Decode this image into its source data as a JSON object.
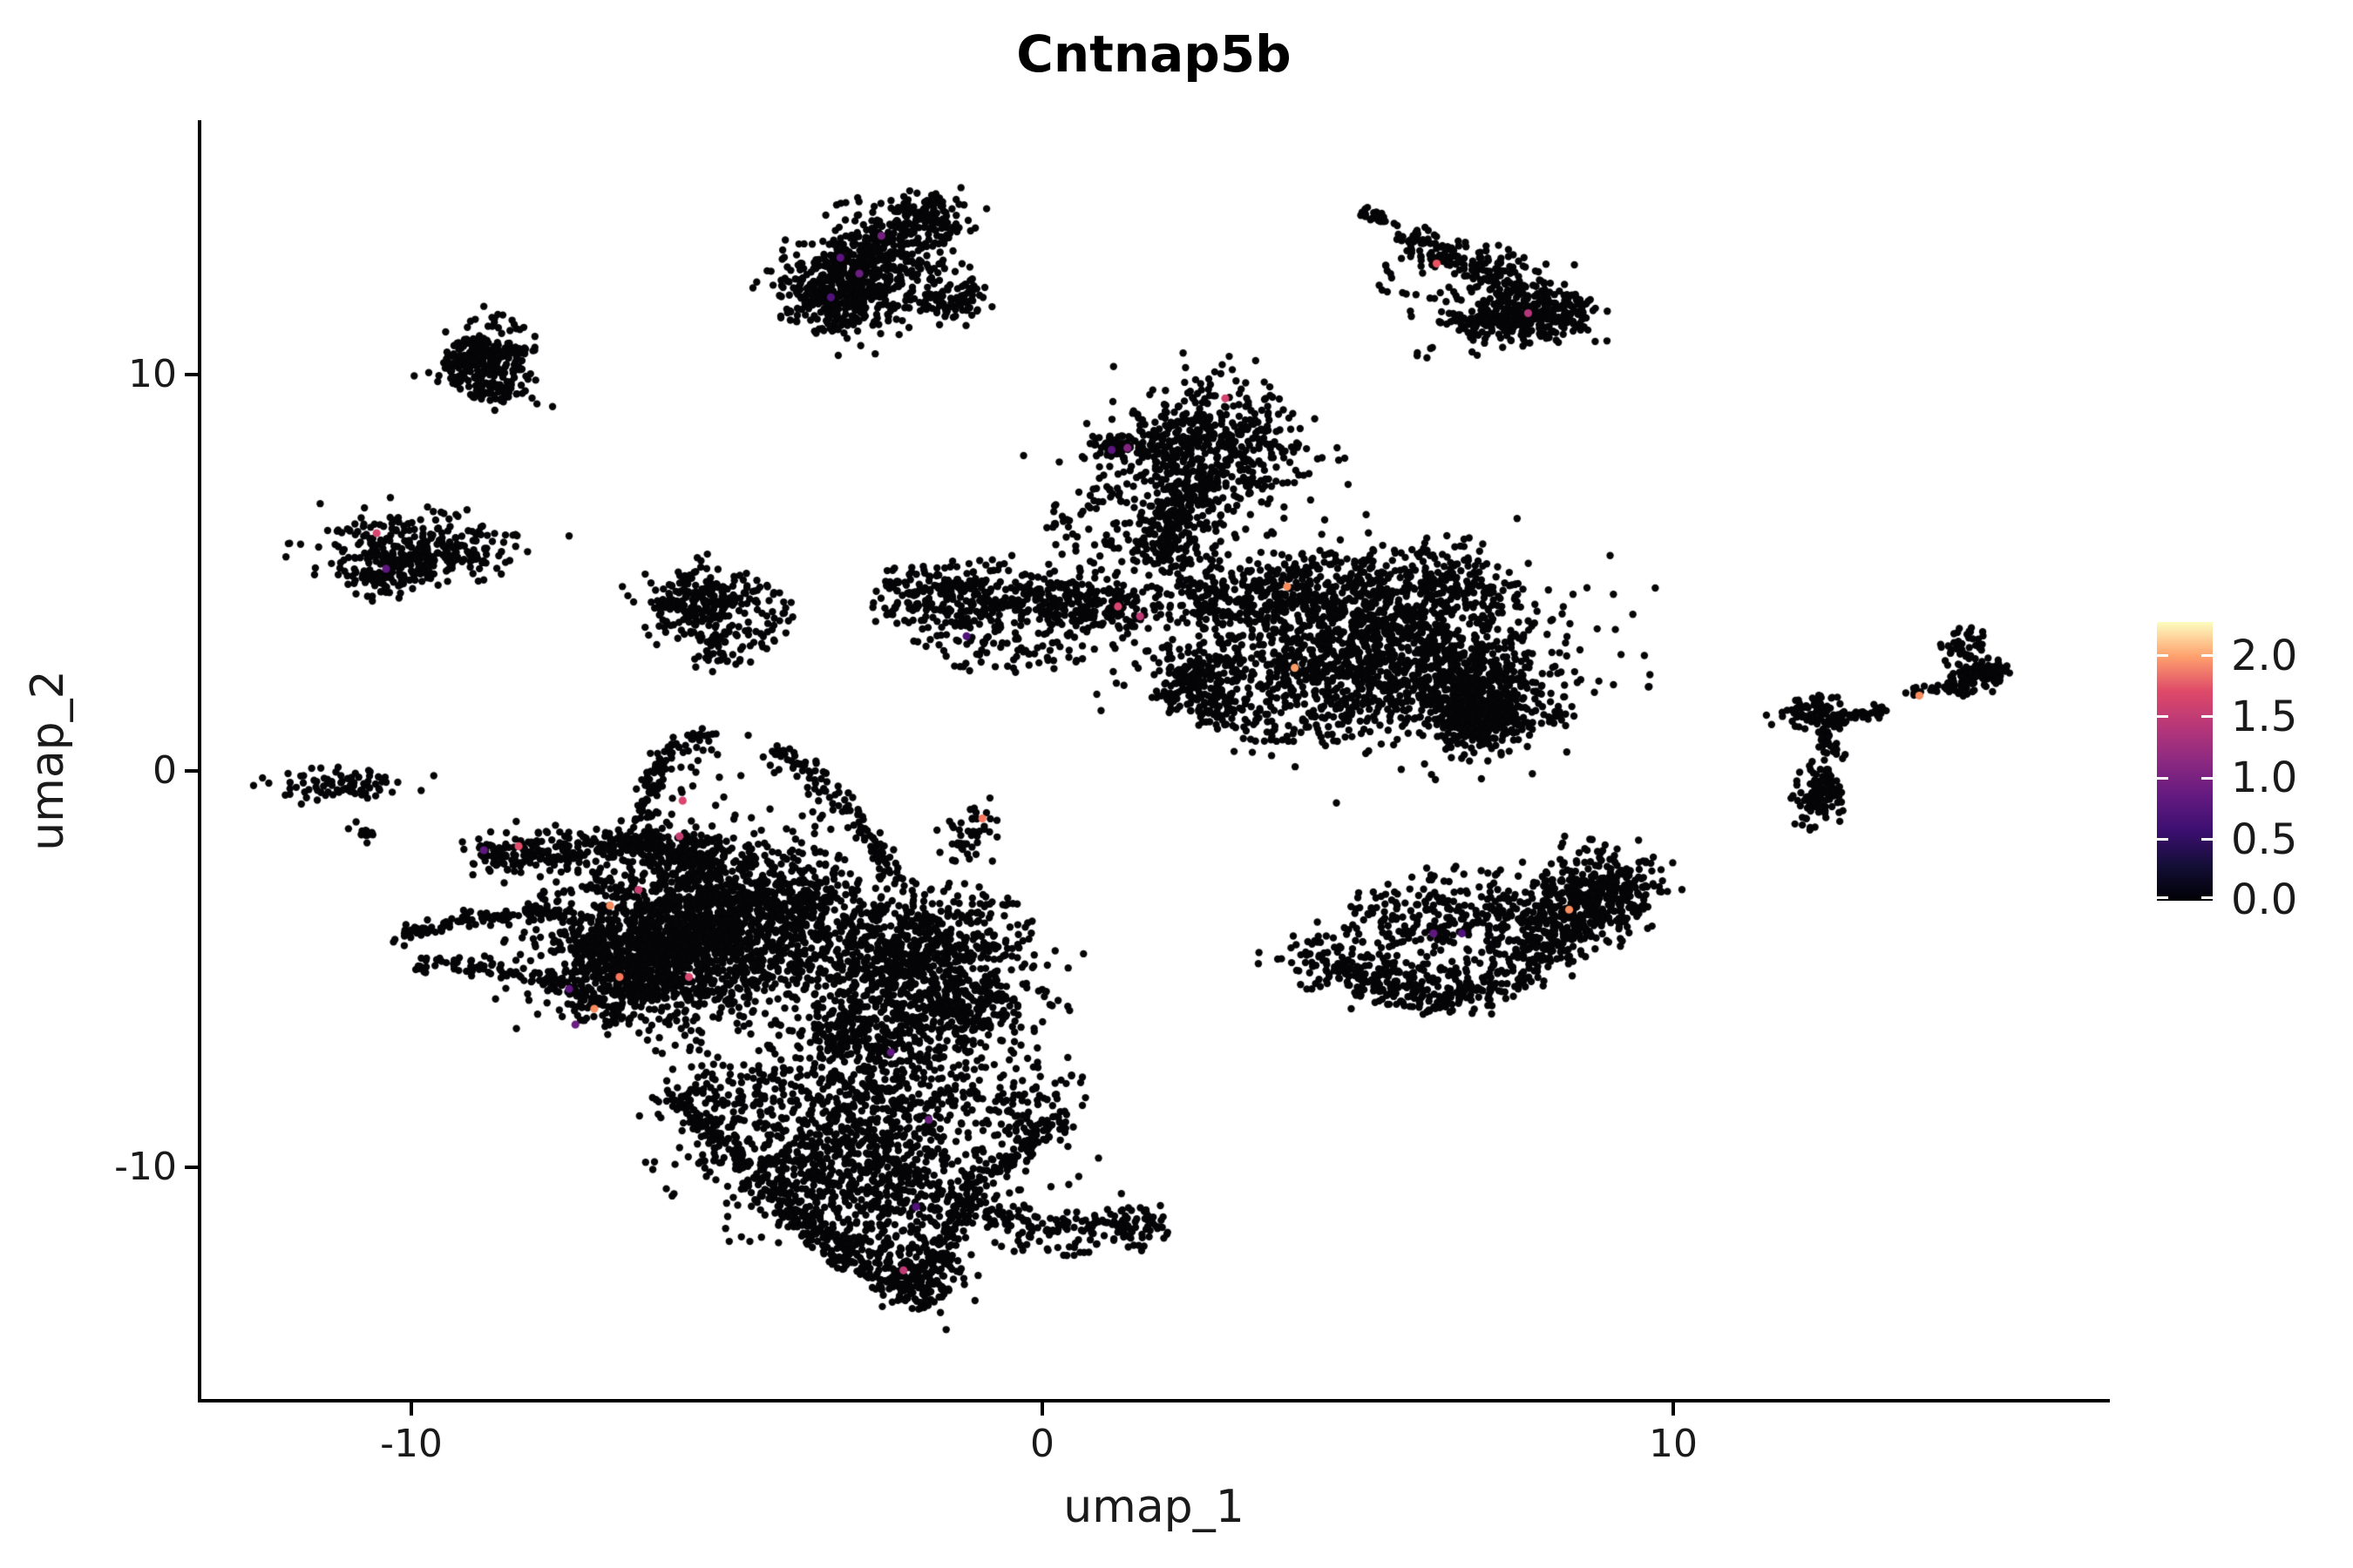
{
  "chart_data": {
    "type": "scatter",
    "title": "Cntnap5b",
    "xlabel": "umap_1",
    "ylabel": "umap_2",
    "x_ticks": [
      {
        "value": -10,
        "label": "-10"
      },
      {
        "value": 0,
        "label": "0"
      },
      {
        "value": 10,
        "label": "10"
      }
    ],
    "y_ticks": [
      {
        "value": 10,
        "label": "10"
      },
      {
        "value": 0,
        "label": "0"
      },
      {
        "value": -10,
        "label": "-10"
      }
    ],
    "xlim": [
      -13.35,
      16.9
    ],
    "ylim": [
      -15.85,
      16.4
    ],
    "grid": false,
    "legend_position": "right",
    "point_color": "#050507",
    "point_radius_px": 4.2,
    "expressing_point_radius_px": 4.6,
    "colorbar": {
      "vmin": 0.0,
      "vmax": 2.27,
      "colormap": "magma",
      "ticks": [
        {
          "value": 2.0,
          "label": "2.0"
        },
        {
          "value": 1.5,
          "label": "1.5"
        },
        {
          "value": 1.0,
          "label": "1.0"
        },
        {
          "value": 0.5,
          "label": "0.5"
        },
        {
          "value": 0.0,
          "label": "0.0"
        }
      ],
      "gradient_stops": [
        [
          0.0,
          "#000004"
        ],
        [
          0.125,
          "#140e36"
        ],
        [
          0.25,
          "#3b0f70"
        ],
        [
          0.375,
          "#641a80"
        ],
        [
          0.5,
          "#8c2981"
        ],
        [
          0.625,
          "#b73779"
        ],
        [
          0.75,
          "#de4968"
        ],
        [
          0.875,
          "#fe9f6d"
        ],
        [
          1.0,
          "#fcfdbf"
        ]
      ]
    },
    "clusters": [
      {
        "kind": "band",
        "p1": [
          -3.9,
          11.9
        ],
        "p2": [
          -1.5,
          14.2
        ],
        "w": 0.38,
        "n": 480
      },
      {
        "kind": "band",
        "p1": [
          -3.6,
          11.5
        ],
        "p2": [
          -2.0,
          12.6
        ],
        "w": 0.45,
        "n": 260
      },
      {
        "kind": "uniform",
        "cx": -2.6,
        "cy": 12.8,
        "rx": 1.6,
        "ry": 1.7,
        "n": 110
      },
      {
        "kind": "band",
        "p1": [
          -1.7,
          11.6
        ],
        "p2": [
          -1.05,
          12.1
        ],
        "w": 0.25,
        "n": 70
      },
      {
        "kind": "chain",
        "pts": [
          [
            5.05,
            14.1
          ],
          [
            5.55,
            13.85
          ]
        ],
        "w": 0.09,
        "n": 26
      },
      {
        "kind": "band",
        "p1": [
          5.75,
          13.5
        ],
        "p2": [
          7.6,
          12.1
        ],
        "w": 0.16,
        "n": 150
      },
      {
        "kind": "gauss",
        "cx": 7.85,
        "cy": 11.55,
        "sx": 0.45,
        "sy": 0.4,
        "n": 260
      },
      {
        "kind": "gauss",
        "cx": 7.0,
        "cy": 11.35,
        "sx": 0.3,
        "sy": 0.2,
        "n": 90
      },
      {
        "kind": "uniform",
        "cx": 6.6,
        "cy": 12.3,
        "rx": 1.3,
        "ry": 1.1,
        "n": 90
      },
      {
        "kind": "uniform",
        "cx": 6.15,
        "cy": 10.55,
        "rx": 0.25,
        "ry": 0.15,
        "n": 5
      },
      {
        "kind": "band",
        "p1": [
          -9.15,
          9.8
        ],
        "p2": [
          -9.0,
          10.9
        ],
        "w": 0.22,
        "n": 130
      },
      {
        "kind": "gauss",
        "cx": -8.65,
        "cy": 10.35,
        "sx": 0.33,
        "sy": 0.55,
        "n": 170
      },
      {
        "kind": "uniform",
        "cx": -8.6,
        "cy": 9.5,
        "rx": 0.4,
        "ry": 0.3,
        "n": 25
      },
      {
        "kind": "gauss",
        "cx": -9.9,
        "cy": 5.65,
        "sx": 0.75,
        "sy": 0.4,
        "n": 240
      },
      {
        "kind": "band",
        "p1": [
          -10.8,
          4.7
        ],
        "p2": [
          -9.9,
          5.3
        ],
        "w": 0.3,
        "n": 110
      },
      {
        "kind": "uniform",
        "cx": -9.3,
        "cy": 5.3,
        "rx": 0.8,
        "ry": 0.6,
        "n": 40
      },
      {
        "kind": "gauss",
        "cx": -5.5,
        "cy": 4.2,
        "sx": 0.42,
        "sy": 0.5,
        "n": 200
      },
      {
        "kind": "uniform",
        "cx": -4.8,
        "cy": 3.9,
        "rx": 0.9,
        "ry": 1.0,
        "n": 90
      },
      {
        "kind": "gauss",
        "cx": -5.2,
        "cy": 2.95,
        "sx": 0.25,
        "sy": 0.25,
        "n": 30
      },
      {
        "kind": "gauss",
        "cx": -11.15,
        "cy": -0.35,
        "sx": 0.55,
        "sy": 0.22,
        "n": 80
      },
      {
        "kind": "chain",
        "pts": [
          [
            -10.85,
            -1.35
          ],
          [
            -10.7,
            -1.75
          ]
        ],
        "w": 0.08,
        "n": 12
      },
      {
        "kind": "gauss",
        "cx": 2.65,
        "cy": 8.35,
        "sx": 0.75,
        "sy": 0.8,
        "n": 430
      },
      {
        "kind": "gauss",
        "cx": 1.3,
        "cy": 8.1,
        "sx": 0.45,
        "sy": 0.22,
        "n": 70
      },
      {
        "kind": "uniform",
        "cx": 2.3,
        "cy": 7.2,
        "rx": 2.0,
        "ry": 2.0,
        "n": 100
      },
      {
        "kind": "band",
        "p1": [
          2.45,
          7.5
        ],
        "p2": [
          1.95,
          5.2
        ],
        "w": 0.32,
        "n": 260
      },
      {
        "kind": "uniform",
        "cx": 1.1,
        "cy": 6.1,
        "rx": 1.1,
        "ry": 1.2,
        "n": 70
      },
      {
        "kind": "band",
        "p1": [
          -2.05,
          4.55
        ],
        "p2": [
          1.4,
          4.1
        ],
        "w": 0.42,
        "n": 480
      },
      {
        "kind": "uniform",
        "cx": -0.6,
        "cy": 3.3,
        "rx": 1.5,
        "ry": 0.9,
        "n": 90
      },
      {
        "kind": "gauss",
        "cx": -2.2,
        "cy": 4.35,
        "sx": 0.3,
        "sy": 0.35,
        "n": 60
      },
      {
        "kind": "band",
        "p1": [
          2.2,
          4.35
        ],
        "p2": [
          7.0,
          4.75
        ],
        "w": 0.5,
        "n": 550
      },
      {
        "kind": "gauss",
        "cx": 5.2,
        "cy": 3.0,
        "sx": 1.5,
        "sy": 1.05,
        "n": 1250
      },
      {
        "kind": "gauss",
        "cx": 6.9,
        "cy": 2.0,
        "sx": 0.55,
        "sy": 0.75,
        "n": 380
      },
      {
        "kind": "gauss",
        "cx": 7.0,
        "cy": 1.3,
        "sx": 0.38,
        "sy": 0.3,
        "n": 200
      },
      {
        "kind": "uniform",
        "cx": 4.0,
        "cy": 1.9,
        "rx": 2.2,
        "ry": 1.2,
        "n": 180
      },
      {
        "kind": "band",
        "p1": [
          2.1,
          3.1
        ],
        "p2": [
          2.9,
          1.3
        ],
        "w": 0.3,
        "n": 140
      },
      {
        "kind": "gauss",
        "cx": -1.15,
        "cy": -1.6,
        "sx": 0.28,
        "sy": 0.45,
        "n": 45
      },
      {
        "kind": "chain",
        "pts": [
          [
            -5.25,
            0.95
          ],
          [
            -5.9,
            0.55
          ],
          [
            -6.2,
            -0.3
          ],
          [
            -6.3,
            -1.4
          ],
          [
            -6.25,
            -2.0
          ]
        ],
        "w": 0.1,
        "n": 110
      },
      {
        "kind": "chain",
        "pts": [
          [
            -4.25,
            0.65
          ],
          [
            -3.6,
            -0.1
          ],
          [
            -3.1,
            -0.9
          ],
          [
            -2.7,
            -1.8
          ],
          [
            -2.3,
            -2.9
          ]
        ],
        "w": 0.1,
        "n": 110
      },
      {
        "kind": "uniform",
        "cx": -4.6,
        "cy": -0.6,
        "rx": 1.6,
        "ry": 1.5,
        "n": 55
      },
      {
        "kind": "band",
        "p1": [
          -9.0,
          -2.15
        ],
        "p2": [
          -6.3,
          -1.8
        ],
        "w": 0.22,
        "n": 230
      },
      {
        "kind": "band",
        "p1": [
          -6.3,
          -1.8
        ],
        "p2": [
          -5.2,
          -2.3
        ],
        "w": 0.3,
        "n": 150
      },
      {
        "kind": "chain",
        "pts": [
          [
            -10.25,
            -4.15
          ],
          [
            -9.2,
            -3.75
          ],
          [
            -8.1,
            -3.55
          ],
          [
            -7.5,
            -3.6
          ]
        ],
        "w": 0.1,
        "n": 110
      },
      {
        "kind": "chain",
        "pts": [
          [
            -9.9,
            -4.85
          ],
          [
            -8.7,
            -5.0
          ],
          [
            -7.6,
            -5.45
          ],
          [
            -6.6,
            -6.3
          ]
        ],
        "w": 0.12,
        "n": 130
      },
      {
        "kind": "gauss",
        "cx": -5.6,
        "cy": -4.3,
        "sx": 1.1,
        "sy": 1.0,
        "n": 1500
      },
      {
        "kind": "gauss",
        "cx": -6.6,
        "cy": -4.9,
        "sx": 0.55,
        "sy": 0.6,
        "n": 350
      },
      {
        "kind": "gauss",
        "cx": -4.4,
        "cy": -3.3,
        "sx": 0.8,
        "sy": 0.6,
        "n": 350
      },
      {
        "kind": "uniform",
        "cx": -5.0,
        "cy": -2.7,
        "rx": 2.2,
        "ry": 1.1,
        "n": 150
      },
      {
        "kind": "gauss",
        "cx": -2.3,
        "cy": -5.0,
        "sx": 0.9,
        "sy": 0.85,
        "n": 700
      },
      {
        "kind": "gauss",
        "cx": -1.3,
        "cy": -6.2,
        "sx": 0.6,
        "sy": 0.6,
        "n": 250
      },
      {
        "kind": "uniform",
        "cx": -1.6,
        "cy": -4.0,
        "rx": 1.5,
        "ry": 1.2,
        "n": 150
      },
      {
        "kind": "band",
        "p1": [
          -3.6,
          -6.4
        ],
        "p2": [
          -2.0,
          -7.4
        ],
        "w": 0.4,
        "n": 200
      },
      {
        "kind": "chain",
        "pts": [
          [
            -5.9,
            -8.1
          ],
          [
            -4.9,
            -9.6
          ],
          [
            -3.9,
            -11.2
          ],
          [
            -2.6,
            -12.7
          ],
          [
            -2.0,
            -13.4
          ]
        ],
        "w": 0.18,
        "n": 330
      },
      {
        "kind": "chain",
        "pts": [
          [
            0.3,
            -8.8
          ],
          [
            -0.9,
            -10.2
          ],
          [
            -1.35,
            -11.3
          ],
          [
            -1.8,
            -12.8
          ]
        ],
        "w": 0.15,
        "n": 200
      },
      {
        "kind": "gauss",
        "cx": -2.9,
        "cy": -9.6,
        "sx": 1.2,
        "sy": 0.9,
        "n": 700
      },
      {
        "kind": "uniform",
        "cx": -2.6,
        "cy": -11.3,
        "rx": 1.3,
        "ry": 1.5,
        "n": 280
      },
      {
        "kind": "band",
        "p1": [
          -5.6,
          -7.9
        ],
        "p2": [
          0.3,
          -8.4
        ],
        "w": 0.5,
        "n": 350
      },
      {
        "kind": "gauss",
        "cx": -1.85,
        "cy": -13.0,
        "sx": 0.35,
        "sy": 0.4,
        "n": 90
      },
      {
        "kind": "band",
        "p1": [
          -1.2,
          -11.2
        ],
        "p2": [
          1.0,
          -11.5
        ],
        "w": 0.22,
        "n": 100
      },
      {
        "kind": "gauss",
        "cx": 1.45,
        "cy": -11.45,
        "sx": 0.28,
        "sy": 0.3,
        "n": 70
      },
      {
        "kind": "uniform",
        "cx": 0.2,
        "cy": -11.9,
        "rx": 1.0,
        "ry": 0.35,
        "n": 30
      },
      {
        "kind": "chain",
        "pts": [
          [
            4.3,
            -4.65
          ],
          [
            5.2,
            -5.3
          ],
          [
            6.3,
            -5.7
          ],
          [
            7.5,
            -5.0
          ],
          [
            8.5,
            -3.9
          ],
          [
            9.05,
            -2.8
          ]
        ],
        "w": 0.35,
        "n": 600
      },
      {
        "kind": "band",
        "p1": [
          5.0,
          -4.4
        ],
        "p2": [
          8.3,
          -3.2
        ],
        "w": 0.5,
        "n": 250
      },
      {
        "kind": "uniform",
        "cx": 6.6,
        "cy": -3.3,
        "rx": 1.8,
        "ry": 0.9,
        "n": 110
      },
      {
        "kind": "gauss",
        "cx": 8.9,
        "cy": -3.0,
        "sx": 0.45,
        "sy": 0.55,
        "n": 220
      },
      {
        "kind": "gauss",
        "cx": 12.25,
        "cy": 1.5,
        "sx": 0.3,
        "sy": 0.22,
        "n": 90
      },
      {
        "kind": "chain",
        "pts": [
          [
            12.45,
            1.2
          ],
          [
            12.5,
            0.4
          ]
        ],
        "w": 0.09,
        "n": 30
      },
      {
        "kind": "gauss",
        "cx": 12.35,
        "cy": -0.5,
        "sx": 0.22,
        "sy": 0.33,
        "n": 110
      },
      {
        "kind": "chain",
        "pts": [
          [
            12.6,
            1.35
          ],
          [
            13.35,
            1.55
          ]
        ],
        "w": 0.08,
        "n": 35
      },
      {
        "kind": "chain",
        "pts": [
          [
            13.7,
            1.95
          ],
          [
            14.25,
            2.1
          ]
        ],
        "w": 0.05,
        "n": 14
      },
      {
        "kind": "band",
        "p1": [
          14.35,
          2.2
        ],
        "p2": [
          15.25,
          2.55
        ],
        "w": 0.14,
        "n": 130
      },
      {
        "kind": "gauss",
        "cx": 14.6,
        "cy": 3.1,
        "sx": 0.17,
        "sy": 0.25,
        "n": 45
      },
      {
        "kind": "uniform",
        "cx": 12.15,
        "cy": -1.35,
        "rx": 0.3,
        "ry": 0.15,
        "n": 6
      }
    ],
    "expressing_cells": [
      [
        -2.9,
        12.55,
        "#6b1f80"
      ],
      [
        -3.2,
        12.95,
        "#5c157e"
      ],
      [
        -3.35,
        11.95,
        "#51127c"
      ],
      [
        -2.55,
        13.5,
        "#72217e"
      ],
      [
        2.9,
        9.4,
        "#d3436e"
      ],
      [
        6.25,
        12.8,
        "#ea5462"
      ],
      [
        7.7,
        11.55,
        "#b5367a"
      ],
      [
        -10.55,
        6.0,
        "#d9466f"
      ],
      [
        -10.4,
        5.1,
        "#5f187f"
      ],
      [
        1.1,
        8.1,
        "#5c157e"
      ],
      [
        1.35,
        8.15,
        "#822581"
      ],
      [
        1.2,
        4.15,
        "#d9466f"
      ],
      [
        1.55,
        3.9,
        "#c03a76"
      ],
      [
        -1.2,
        3.4,
        "#51127c"
      ],
      [
        4.0,
        2.6,
        "#fb9d67"
      ],
      [
        3.88,
        4.65,
        "#fa8d5e"
      ],
      [
        -0.95,
        -1.2,
        "#f8765c"
      ],
      [
        -5.7,
        -0.75,
        "#d9466f"
      ],
      [
        -5.75,
        -1.65,
        "#c73f72"
      ],
      [
        -8.3,
        -1.9,
        "#e14f6d"
      ],
      [
        -8.85,
        -2.0,
        "#5f187f"
      ],
      [
        -6.4,
        -3.0,
        "#c73f72"
      ],
      [
        -6.85,
        -3.4,
        "#fa8d5e"
      ],
      [
        -6.7,
        -5.2,
        "#f8765c"
      ],
      [
        -7.5,
        -5.5,
        "#5f187f"
      ],
      [
        -5.6,
        -5.2,
        "#d9466f"
      ],
      [
        -7.4,
        -6.4,
        "#6b1f80"
      ],
      [
        -7.1,
        -6.0,
        "#fa8d5e"
      ],
      [
        -2.4,
        -7.1,
        "#5f187f"
      ],
      [
        -1.8,
        -8.8,
        "#6b1f80"
      ],
      [
        -2.2,
        -12.6,
        "#c03a76"
      ],
      [
        -2.0,
        -11.0,
        "#51127c"
      ],
      [
        8.35,
        -3.5,
        "#fa8d5e"
      ],
      [
        6.2,
        -4.1,
        "#5f187f"
      ],
      [
        6.65,
        -4.1,
        "#51127c"
      ],
      [
        13.9,
        1.9,
        "#fa8d5e"
      ]
    ]
  }
}
